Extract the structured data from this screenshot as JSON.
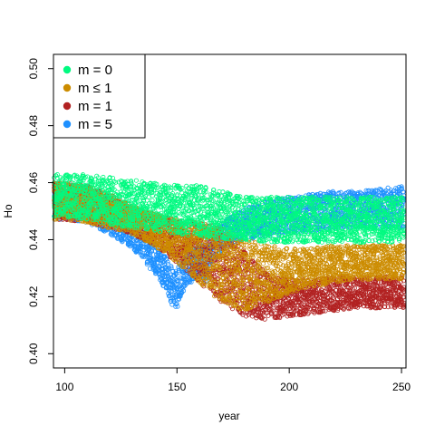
{
  "chart_data": {
    "type": "scatter",
    "title": "",
    "xlabel": "year",
    "ylabel": "Ho",
    "xlim": [
      95,
      252
    ],
    "ylim": [
      0.395,
      0.505
    ],
    "x_ticks": [
      100,
      150,
      200,
      250
    ],
    "y_ticks": [
      0.4,
      0.42,
      0.44,
      0.46,
      0.48,
      0.5
    ],
    "x_tick_labels": [
      "100",
      "150",
      "200",
      "250"
    ],
    "y_tick_labels": [
      "0.40",
      "0.42",
      "0.44",
      "0.46",
      "0.48",
      "0.50"
    ],
    "grid": false,
    "legend_position": "top-left",
    "marker": "open-circle",
    "draw_order": [
      "m = 5",
      "m = 1",
      "m ≤ 1",
      "m = 0"
    ],
    "series": [
      {
        "name": "m = 0",
        "color": "#00FA80",
        "band": {
          "x": [
            95,
            100,
            110,
            120,
            130,
            140,
            150,
            160,
            170,
            180,
            190,
            200,
            210,
            220,
            230,
            240,
            252
          ],
          "y_low": [
            0.448,
            0.448,
            0.447,
            0.445,
            0.444,
            0.443,
            0.442,
            0.441,
            0.44,
            0.44,
            0.439,
            0.439,
            0.439,
            0.439,
            0.439,
            0.439,
            0.439
          ],
          "y_high": [
            0.463,
            0.463,
            0.463,
            0.462,
            0.461,
            0.46,
            0.459,
            0.459,
            0.457,
            0.455,
            0.455,
            0.455,
            0.455,
            0.455,
            0.455,
            0.455,
            0.455
          ]
        }
      },
      {
        "name": "m ≤ 1",
        "color": "#CC8C00",
        "band": {
          "x": [
            95,
            100,
            110,
            120,
            130,
            140,
            150,
            160,
            170,
            180,
            190,
            200,
            210,
            220,
            230,
            240,
            252
          ],
          "y_low": [
            0.447,
            0.447,
            0.446,
            0.444,
            0.442,
            0.438,
            0.432,
            0.425,
            0.418,
            0.415,
            0.418,
            0.421,
            0.423,
            0.425,
            0.426,
            0.426,
            0.426
          ],
          "y_high": [
            0.46,
            0.46,
            0.459,
            0.456,
            0.452,
            0.449,
            0.447,
            0.446,
            0.444,
            0.44,
            0.438,
            0.437,
            0.437,
            0.438,
            0.438,
            0.438,
            0.438
          ]
        }
      },
      {
        "name": "m = 1",
        "color": "#B22222",
        "band": {
          "x": [
            95,
            100,
            110,
            120,
            130,
            140,
            150,
            160,
            170,
            180,
            190,
            200,
            210,
            220,
            230,
            240,
            252
          ],
          "y_low": [
            0.447,
            0.447,
            0.446,
            0.444,
            0.442,
            0.438,
            0.432,
            0.425,
            0.418,
            0.413,
            0.412,
            0.413,
            0.414,
            0.415,
            0.416,
            0.416,
            0.416
          ],
          "y_high": [
            0.46,
            0.46,
            0.459,
            0.456,
            0.452,
            0.449,
            0.447,
            0.446,
            0.444,
            0.436,
            0.428,
            0.426,
            0.426,
            0.427,
            0.427,
            0.427,
            0.427
          ]
        }
      },
      {
        "name": "m = 5",
        "color": "#1E90FF",
        "band": {
          "x": [
            95,
            100,
            110,
            120,
            130,
            135,
            140,
            145,
            148,
            150,
            152,
            155,
            160,
            163,
            165,
            170,
            180,
            190,
            200,
            210,
            220,
            230,
            240,
            252
          ],
          "y_low": [
            0.447,
            0.447,
            0.446,
            0.442,
            0.437,
            0.433,
            0.428,
            0.422,
            0.417,
            0.416,
            0.421,
            0.424,
            0.428,
            0.424,
            0.431,
            0.436,
            0.44,
            0.441,
            0.442,
            0.443,
            0.444,
            0.444,
            0.444,
            0.444
          ],
          "y_high": [
            0.46,
            0.46,
            0.458,
            0.453,
            0.447,
            0.443,
            0.439,
            0.434,
            0.43,
            0.429,
            0.433,
            0.436,
            0.439,
            0.437,
            0.442,
            0.446,
            0.451,
            0.454,
            0.455,
            0.456,
            0.457,
            0.457,
            0.458,
            0.459
          ]
        }
      }
    ]
  }
}
